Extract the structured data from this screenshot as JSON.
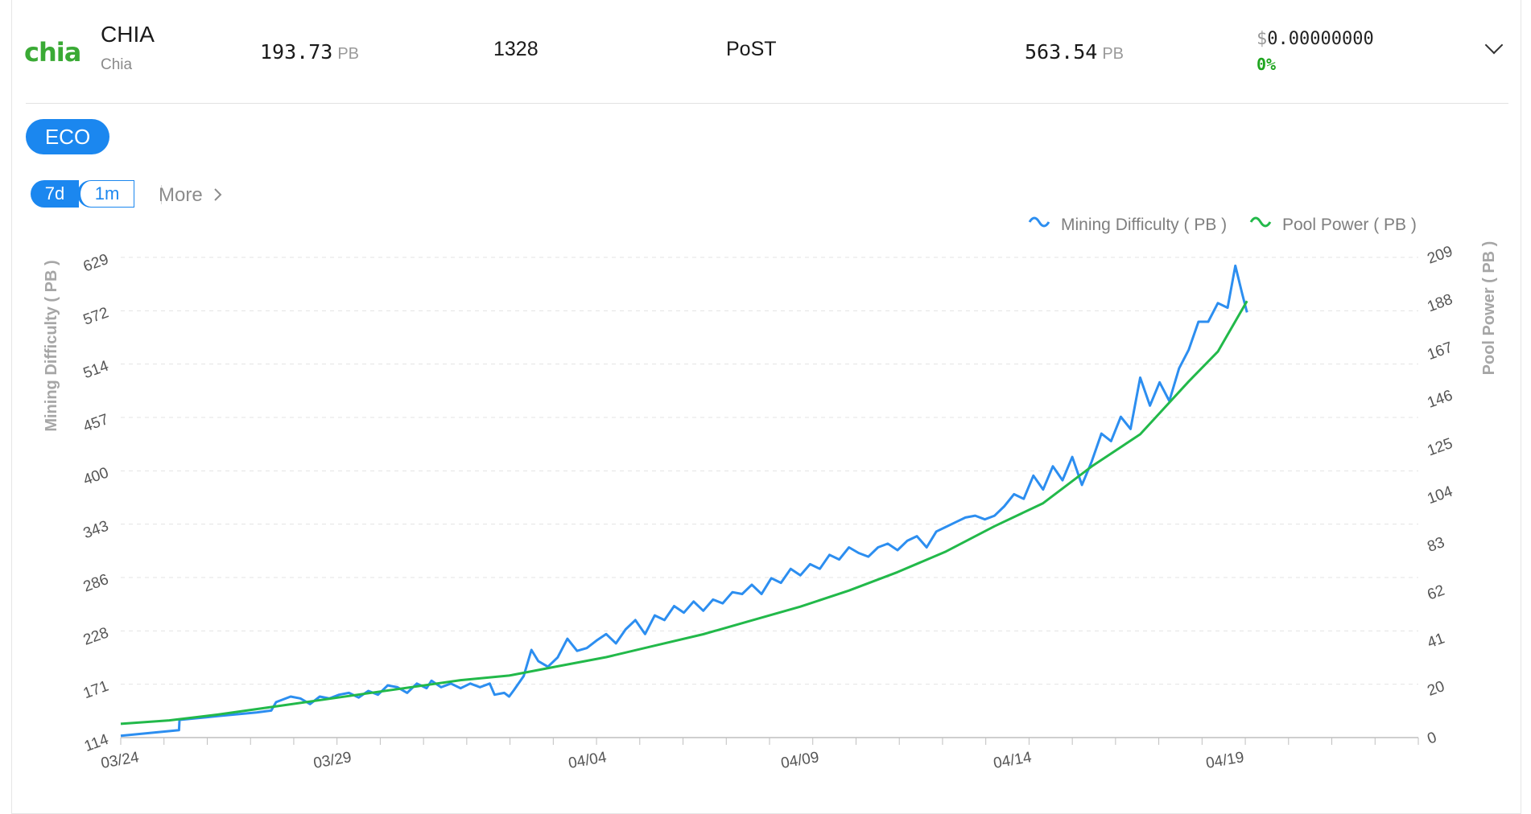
{
  "coin": {
    "logo_text": "chia",
    "name": "CHIA",
    "subname": "Chia",
    "pool_power": {
      "value": "193.73",
      "unit": "PB"
    },
    "height": "1328",
    "algorithm": "PoST",
    "difficulty": {
      "value": "563.54",
      "unit": "PB"
    },
    "price": {
      "sign": "$",
      "value": "0.00000000"
    },
    "change_pct": "0%"
  },
  "eco_label": "ECO",
  "ranges": [
    "7d",
    "1m"
  ],
  "active_range": "7d",
  "more_label": "More",
  "colors": {
    "accent": "#1b87ef",
    "difficulty_line": "#2c8ef0",
    "pool_line": "#22b94a",
    "positive": "#1fa51f"
  },
  "chart_data": {
    "type": "line",
    "legend_position": "top-right",
    "grid": true,
    "x_ticks": [
      "03/24",
      "03/29",
      "04/04",
      "04/09",
      "04/14",
      "04/19"
    ],
    "y_left": {
      "label": "Mining Difficulty ( PB )",
      "ticks": [
        "114",
        "171",
        "228",
        "286",
        "343",
        "400",
        "457",
        "514",
        "572",
        "629"
      ],
      "range": [
        114,
        629
      ]
    },
    "y_right": {
      "label": "Pool Power ( PB )",
      "ticks": [
        "0",
        "20",
        "41",
        "62",
        "83",
        "104",
        "125",
        "146",
        "167",
        "188",
        "209"
      ],
      "range": [
        0,
        209
      ]
    },
    "series": [
      {
        "name": "Mining Difficulty ( PB )",
        "axis": "left",
        "color": "#2c8ef0",
        "points": [
          [
            0,
            116
          ],
          [
            3,
            119
          ],
          [
            6,
            122
          ],
          [
            6.05,
            133
          ],
          [
            10,
            137
          ],
          [
            14,
            141
          ],
          [
            15.5,
            143
          ],
          [
            16,
            152
          ],
          [
            17.5,
            158
          ],
          [
            18.5,
            156
          ],
          [
            19.5,
            150
          ],
          [
            20.5,
            158
          ],
          [
            21.5,
            156
          ],
          [
            22.5,
            160
          ],
          [
            23.5,
            162
          ],
          [
            24.5,
            157
          ],
          [
            25.5,
            164
          ],
          [
            26.5,
            160
          ],
          [
            27.5,
            170
          ],
          [
            28.5,
            168
          ],
          [
            29.5,
            162
          ],
          [
            30.5,
            172
          ],
          [
            31.5,
            167
          ],
          [
            32,
            175
          ],
          [
            33,
            168
          ],
          [
            34,
            172
          ],
          [
            35,
            167
          ],
          [
            36,
            172
          ],
          [
            37,
            168
          ],
          [
            38,
            172
          ],
          [
            38.5,
            160
          ],
          [
            39.5,
            162
          ],
          [
            40,
            158
          ],
          [
            40.5,
            165
          ],
          [
            41.5,
            180
          ],
          [
            42.3,
            208
          ],
          [
            43,
            196
          ],
          [
            44,
            190
          ],
          [
            45,
            200
          ],
          [
            46,
            220
          ],
          [
            47,
            207
          ],
          [
            48,
            210
          ],
          [
            49,
            218
          ],
          [
            50,
            225
          ],
          [
            51,
            215
          ],
          [
            52,
            230
          ],
          [
            53,
            240
          ],
          [
            54,
            225
          ],
          [
            55,
            245
          ],
          [
            56,
            240
          ],
          [
            57,
            255
          ],
          [
            58,
            248
          ],
          [
            59,
            260
          ],
          [
            60,
            250
          ],
          [
            61,
            262
          ],
          [
            62,
            258
          ],
          [
            63,
            270
          ],
          [
            64,
            268
          ],
          [
            65,
            278
          ],
          [
            66,
            268
          ],
          [
            67,
            285
          ],
          [
            68,
            280
          ],
          [
            69,
            295
          ],
          [
            70,
            288
          ],
          [
            71,
            300
          ],
          [
            72,
            295
          ],
          [
            73,
            310
          ],
          [
            74,
            305
          ],
          [
            75,
            318
          ],
          [
            76,
            312
          ],
          [
            77,
            308
          ],
          [
            78,
            318
          ],
          [
            79,
            322
          ],
          [
            80,
            315
          ],
          [
            81,
            325
          ],
          [
            82,
            330
          ],
          [
            83,
            318
          ],
          [
            84,
            335
          ],
          [
            85,
            340
          ],
          [
            86,
            345
          ],
          [
            87,
            350
          ],
          [
            88,
            352
          ],
          [
            89,
            348
          ],
          [
            90,
            352
          ],
          [
            91,
            362
          ],
          [
            92,
            375
          ],
          [
            93,
            370
          ],
          [
            94,
            395
          ],
          [
            95,
            380
          ],
          [
            96,
            405
          ],
          [
            97,
            390
          ],
          [
            98,
            415
          ],
          [
            99,
            385
          ],
          [
            100,
            410
          ],
          [
            101,
            440
          ],
          [
            102,
            432
          ],
          [
            103,
            458
          ],
          [
            104,
            445
          ],
          [
            105,
            500
          ],
          [
            106,
            470
          ],
          [
            107,
            495
          ],
          [
            108,
            475
          ],
          [
            109,
            510
          ],
          [
            110,
            530
          ],
          [
            111,
            560
          ],
          [
            112,
            560
          ],
          [
            113,
            580
          ],
          [
            114,
            575
          ],
          [
            114.8,
            620
          ],
          [
            115.5,
            590
          ],
          [
            116,
            570
          ]
        ]
      },
      {
        "name": "Pool Power ( PB )",
        "axis": "right",
        "color": "#22b94a",
        "points": [
          [
            0,
            6
          ],
          [
            5,
            7.5
          ],
          [
            10,
            10
          ],
          [
            15,
            13
          ],
          [
            20,
            16
          ],
          [
            25,
            19
          ],
          [
            30,
            22
          ],
          [
            35,
            25
          ],
          [
            40,
            27
          ],
          [
            45,
            31
          ],
          [
            50,
            35
          ],
          [
            55,
            40
          ],
          [
            60,
            45
          ],
          [
            65,
            51
          ],
          [
            70,
            57
          ],
          [
            75,
            64
          ],
          [
            80,
            72
          ],
          [
            85,
            81
          ],
          [
            90,
            92
          ],
          [
            95,
            102
          ],
          [
            100,
            118
          ],
          [
            105,
            132
          ],
          [
            110,
            155
          ],
          [
            113,
            168
          ],
          [
            116,
            190
          ]
        ]
      }
    ]
  }
}
